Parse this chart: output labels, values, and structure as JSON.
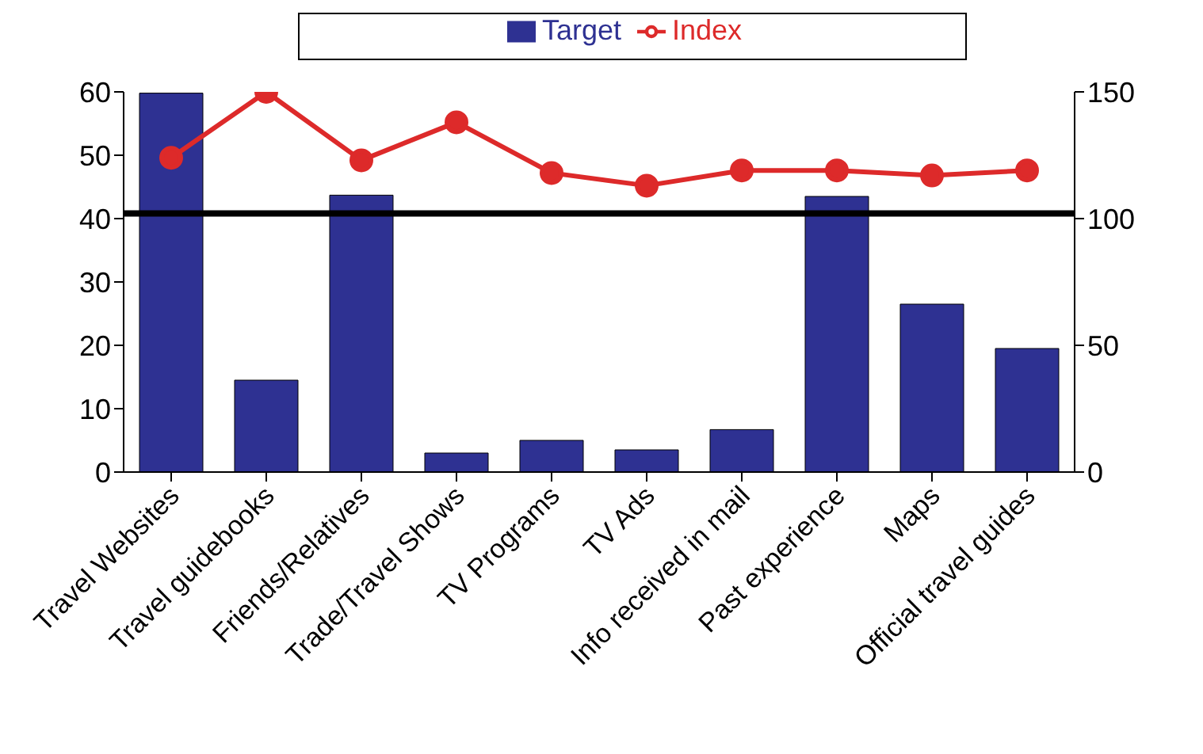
{
  "chart_data": {
    "type": "bar",
    "categories": [
      "Travel Websites",
      "Travel guidebooks",
      "Friends/Relatives",
      "Trade/Travel Shows",
      "TV Programs",
      "TV Ads",
      "Info received in mail",
      "Past experience",
      "Maps",
      "Official travel guides"
    ],
    "series": [
      {
        "name": "Target",
        "color": "#2e3192",
        "values": [
          59.8,
          14.5,
          43.7,
          3,
          5,
          3.5,
          6.7,
          43.5,
          26.5,
          19.5
        ]
      },
      {
        "name": "Index",
        "type": "line",
        "axis": "y2",
        "color": "#dd2a2a",
        "values": [
          124,
          150,
          123,
          138,
          118,
          113,
          119,
          119,
          117,
          119
        ]
      }
    ],
    "ylim": [
      0,
      60
    ],
    "yticks": [
      0,
      10,
      20,
      30,
      40,
      50,
      60
    ],
    "y2lim": [
      0,
      150
    ],
    "y2ticks": [
      0,
      50,
      100,
      150
    ],
    "ref_lines": [
      {
        "axis": "y2",
        "value": 102,
        "color": "#000000"
      }
    ],
    "legend": "top",
    "marker": "circle"
  }
}
